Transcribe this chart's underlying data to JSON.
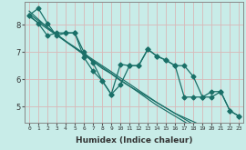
{
  "title": "",
  "xlabel": "Humidex (Indice chaleur)",
  "ylabel": "",
  "bg_color": "#c8ece8",
  "line_color": "#1a7068",
  "grid_color": "#d8b8b8",
  "xlim": [
    -0.5,
    23.5
  ],
  "ylim": [
    4.4,
    8.85
  ],
  "xticks": [
    0,
    1,
    2,
    3,
    4,
    5,
    6,
    7,
    8,
    9,
    10,
    11,
    12,
    13,
    14,
    15,
    16,
    17,
    18,
    19,
    20,
    21,
    22,
    23
  ],
  "yticks": [
    5,
    6,
    7,
    8
  ],
  "series_jagged1": [
    8.35,
    8.6,
    8.05,
    7.6,
    7.7,
    7.7,
    7.0,
    6.6,
    5.95,
    5.45,
    6.55,
    6.5,
    6.5,
    7.1,
    6.85,
    6.7,
    6.5,
    6.5,
    6.1,
    5.35,
    5.35,
    5.55,
    4.85,
    4.65
  ],
  "series_jagged2": [
    8.35,
    8.05,
    7.6,
    7.7,
    7.7,
    7.7,
    6.8,
    6.3,
    5.95,
    5.45,
    5.8,
    6.5,
    6.5,
    7.1,
    6.85,
    6.7,
    6.5,
    5.35,
    5.35,
    5.35,
    5.55,
    5.55,
    4.85,
    4.65
  ],
  "series_linear1": [
    8.5,
    8.2,
    7.9,
    7.65,
    7.4,
    7.15,
    6.9,
    6.65,
    6.4,
    6.2,
    5.95,
    5.75,
    5.55,
    5.35,
    5.15,
    4.95,
    4.75,
    4.6,
    4.45,
    4.3,
    4.15,
    4.0,
    3.85,
    3.7
  ],
  "series_linear2": [
    8.4,
    8.15,
    7.9,
    7.65,
    7.4,
    7.18,
    6.95,
    6.72,
    6.5,
    6.28,
    6.05,
    5.83,
    5.6,
    5.38,
    5.15,
    4.95,
    4.75,
    4.55,
    4.35,
    4.2,
    4.05,
    3.9,
    3.75,
    3.6
  ],
  "series_linear3": [
    8.3,
    8.08,
    7.85,
    7.62,
    7.38,
    7.15,
    6.92,
    6.68,
    6.45,
    6.22,
    5.98,
    5.75,
    5.52,
    5.28,
    5.05,
    4.85,
    4.65,
    4.45,
    4.25,
    4.08,
    3.92,
    3.78,
    3.62,
    3.48
  ],
  "marker": "D",
  "markersize": 2.5,
  "linewidth": 0.9
}
